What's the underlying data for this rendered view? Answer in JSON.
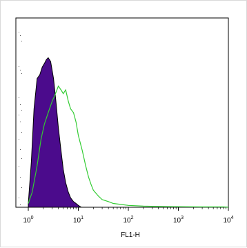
{
  "chart_data": {
    "type": "area",
    "title": "",
    "xlabel": "FL1-H",
    "ylabel": "",
    "x_scale": "log",
    "xlim": [
      1,
      10000
    ],
    "ylim": [
      0,
      100
    ],
    "grid": false,
    "legend": "none",
    "x_ticks": [
      {
        "value": 1,
        "base": "10",
        "exp": "0"
      },
      {
        "value": 10,
        "base": "10",
        "exp": "1"
      },
      {
        "value": 100,
        "base": "10",
        "exp": "2"
      },
      {
        "value": 1000,
        "base": "10",
        "exp": "3"
      },
      {
        "value": 10000,
        "base": "10",
        "exp": "4"
      }
    ],
    "series": [
      {
        "style": "filled",
        "color": "#4b0b8c",
        "x": [
          1.0,
          1.15,
          1.3,
          1.5,
          1.7,
          1.9,
          2.1,
          2.3,
          2.5,
          2.8,
          3.2,
          3.6,
          4.0,
          4.5,
          5.0,
          5.6,
          6.3,
          7.0,
          8.0,
          9.0,
          10.0,
          11.5
        ],
        "y": [
          2,
          24,
          52,
          68,
          70,
          74,
          76,
          78,
          79,
          77,
          68,
          55,
          42,
          30,
          20,
          13,
          8,
          5,
          3,
          2,
          1,
          0
        ]
      },
      {
        "style": "line",
        "color": "#33cc33",
        "x": [
          1.0,
          1.2,
          1.5,
          1.8,
          2.1,
          2.5,
          3.0,
          3.5,
          4.0,
          4.5,
          5.0,
          5.6,
          6.3,
          7.0,
          8.0,
          9.0,
          10,
          12,
          14,
          16,
          18,
          20,
          25,
          30,
          40,
          50,
          70,
          100,
          200,
          400,
          1000,
          3000,
          8000,
          10000
        ],
        "y": [
          2,
          8,
          22,
          36,
          44,
          50,
          56,
          60,
          64,
          62,
          60,
          62,
          56,
          52,
          50,
          45,
          38,
          30,
          22,
          16,
          12,
          9,
          6,
          4,
          3,
          2,
          1.5,
          1,
          0.6,
          0.4,
          0.3,
          0.2,
          0.2,
          0
        ]
      }
    ]
  }
}
